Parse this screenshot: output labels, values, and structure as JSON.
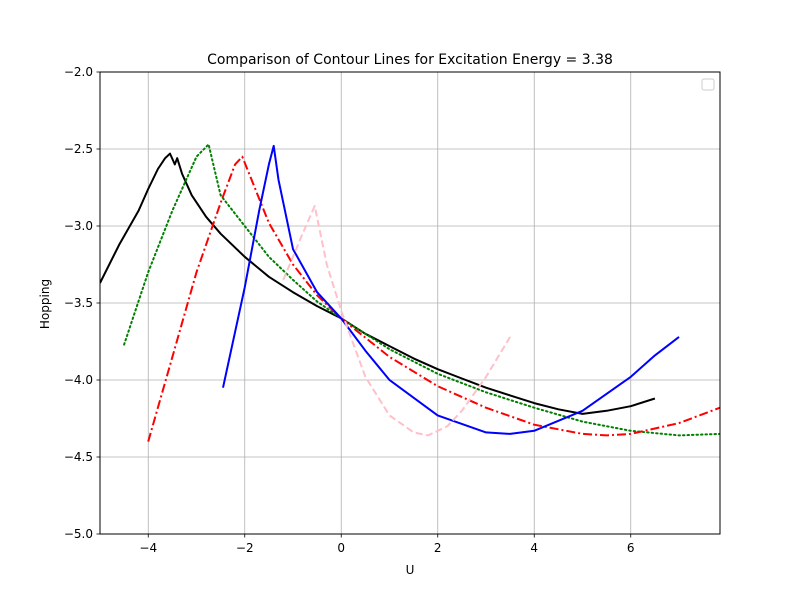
{
  "chart_data": {
    "type": "line",
    "title": "Comparison of Contour Lines for Excitation Energy = 3.38",
    "xlabel": "U",
    "ylabel": "Hopping",
    "xlim": [
      -5,
      7.85
    ],
    "ylim": [
      -5,
      -2
    ],
    "xticks": [
      -4,
      -2,
      0,
      2,
      4,
      6
    ],
    "yticks": [
      -5.0,
      -4.5,
      -4.0,
      -3.5,
      -3.0,
      -2.5,
      -2.0
    ],
    "xtick_labels": [
      "−4",
      "−2",
      "0",
      "2",
      "4",
      "6"
    ],
    "ytick_labels": [
      "−5.0",
      "−4.5",
      "−4.0",
      "−3.5",
      "−3.0",
      "−2.5",
      "−2.0"
    ],
    "grid": true,
    "legend": "upper-right (empty)",
    "series": [
      {
        "color": "#000000",
        "style": "solid",
        "x": [
          -5.0,
          -4.6,
          -4.2,
          -4.0,
          -3.8,
          -3.65,
          -3.55,
          -3.45,
          -3.4,
          -3.3,
          -3.1,
          -2.8,
          -2.5,
          -2.0,
          -1.5,
          -1.0,
          -0.5,
          0.0,
          0.5,
          1.0,
          1.5,
          2.0,
          2.5,
          3.0,
          3.5,
          4.0,
          4.5,
          5.0,
          5.5,
          6.0,
          6.5
        ],
        "y": [
          -3.37,
          -3.12,
          -2.9,
          -2.76,
          -2.63,
          -2.56,
          -2.53,
          -2.6,
          -2.56,
          -2.66,
          -2.8,
          -2.94,
          -3.05,
          -3.2,
          -3.33,
          -3.43,
          -3.52,
          -3.6,
          -3.7,
          -3.78,
          -3.86,
          -3.93,
          -3.99,
          -4.05,
          -4.1,
          -4.15,
          -4.19,
          -4.22,
          -4.2,
          -4.17,
          -4.12
        ]
      },
      {
        "color": "#008000",
        "style": "dotted",
        "x": [
          -4.5,
          -4.0,
          -3.5,
          -3.0,
          -2.75,
          -2.5,
          -2.0,
          -1.5,
          -1.0,
          -0.5,
          0.0,
          1.0,
          2.0,
          3.0,
          4.0,
          5.0,
          6.0,
          7.0,
          7.85
        ],
        "y": [
          -3.77,
          -3.3,
          -2.9,
          -2.55,
          -2.47,
          -2.8,
          -3.0,
          -3.2,
          -3.35,
          -3.49,
          -3.6,
          -3.8,
          -3.96,
          -4.08,
          -4.18,
          -4.27,
          -4.33,
          -4.36,
          -4.35
        ]
      },
      {
        "color": "#ff0000",
        "style": "dashdot",
        "x": [
          -4.0,
          -3.5,
          -3.0,
          -2.5,
          -2.2,
          -2.05,
          -1.5,
          -1.0,
          -0.5,
          0.0,
          1.0,
          2.0,
          3.0,
          4.0,
          5.0,
          5.5,
          6.0,
          7.0,
          7.85
        ],
        "y": [
          -4.4,
          -3.85,
          -3.3,
          -2.85,
          -2.6,
          -2.55,
          -2.98,
          -3.25,
          -3.45,
          -3.6,
          -3.85,
          -4.04,
          -4.18,
          -4.29,
          -4.35,
          -4.36,
          -4.35,
          -4.28,
          -4.18
        ]
      },
      {
        "color": "#0000ff",
        "style": "solid",
        "x": [
          -2.45,
          -2.0,
          -1.7,
          -1.5,
          -1.4,
          -1.3,
          -1.0,
          -0.5,
          0.0,
          0.5,
          1.0,
          2.0,
          3.0,
          3.5,
          4.0,
          5.0,
          6.0,
          6.5,
          7.0
        ],
        "y": [
          -4.05,
          -3.4,
          -2.9,
          -2.6,
          -2.48,
          -2.7,
          -3.15,
          -3.43,
          -3.6,
          -3.81,
          -4.0,
          -4.23,
          -4.34,
          -4.35,
          -4.33,
          -4.2,
          -3.98,
          -3.84,
          -3.72
        ]
      },
      {
        "color": "#ffc0cb",
        "style": "dashed",
        "x": [
          -1.2,
          -0.8,
          -0.55,
          -0.3,
          0.0,
          0.5,
          1.0,
          1.5,
          1.8,
          2.2,
          2.5,
          3.0,
          3.5
        ],
        "y": [
          -3.35,
          -3.05,
          -2.87,
          -3.25,
          -3.55,
          -3.98,
          -4.23,
          -4.34,
          -4.36,
          -4.3,
          -4.2,
          -3.98,
          -3.72
        ]
      }
    ]
  }
}
